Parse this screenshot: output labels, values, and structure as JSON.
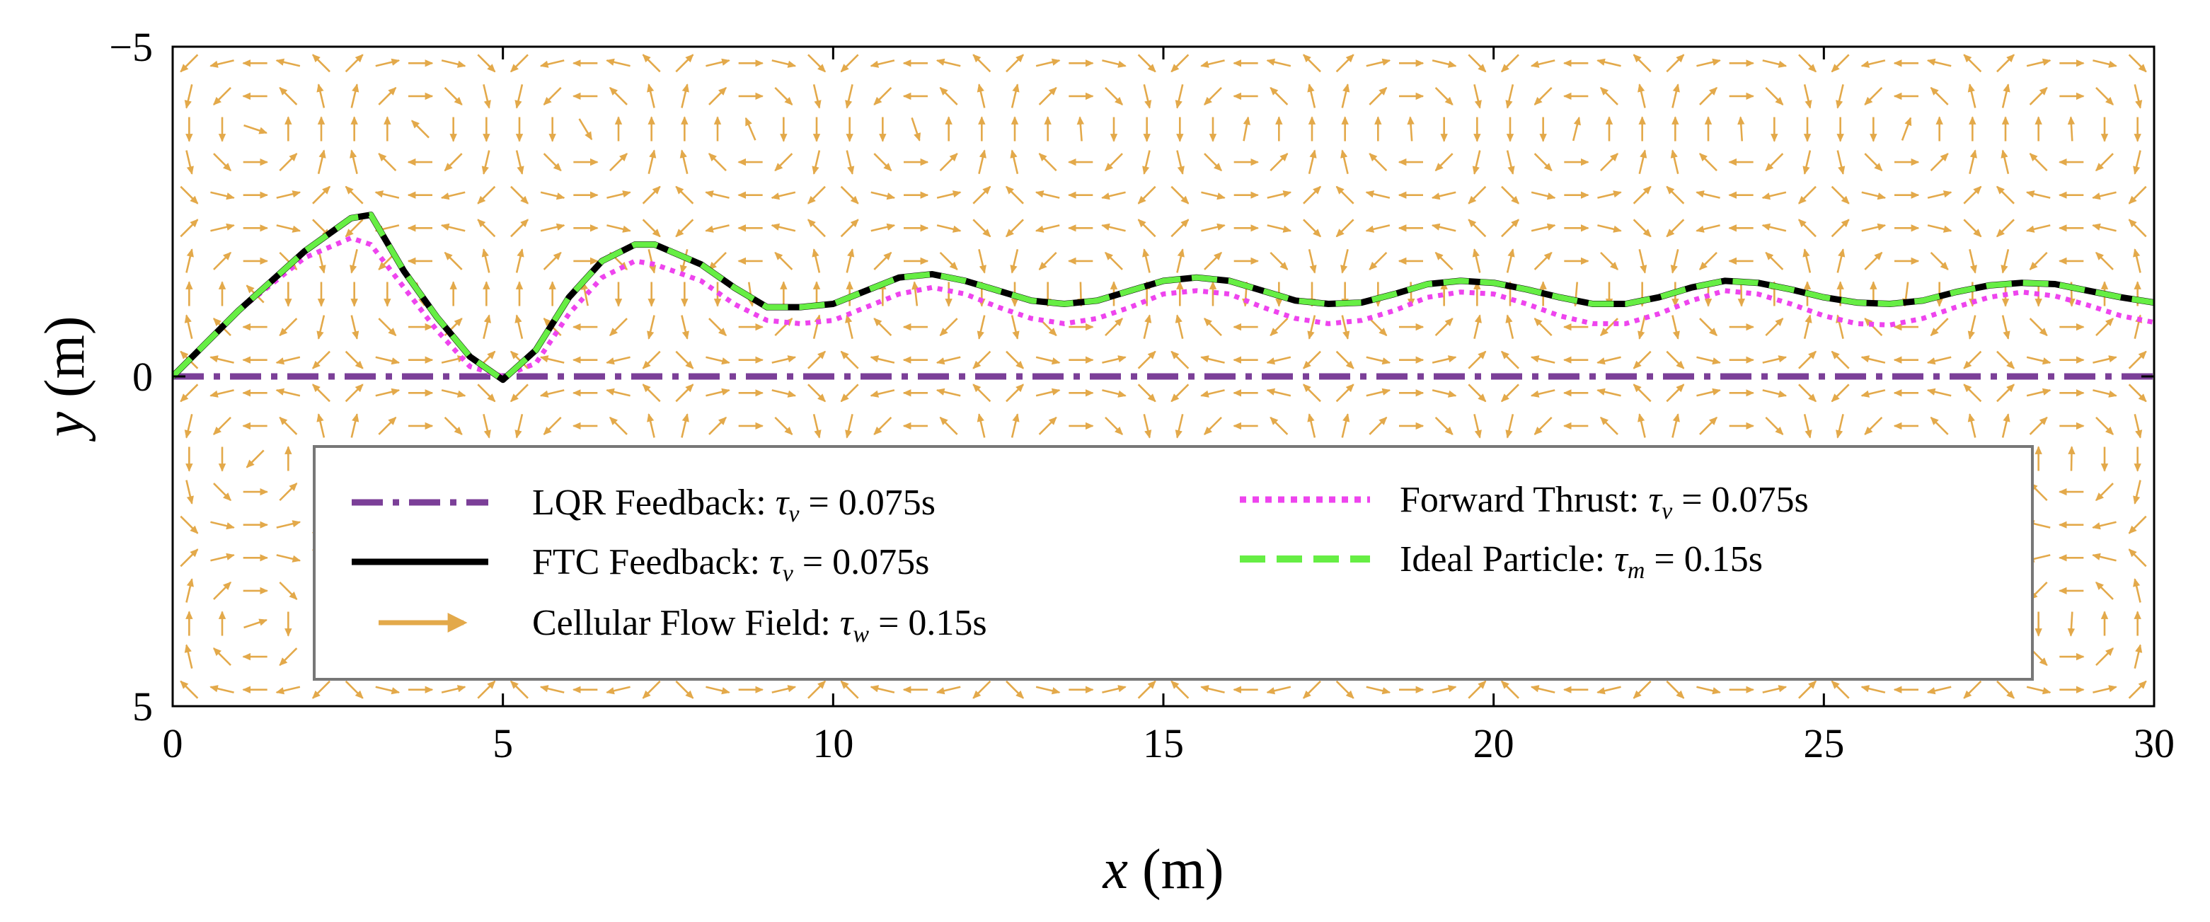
{
  "chart_data": {
    "type": "line",
    "title": "",
    "xlabel_var": "x",
    "xlabel_unit": " (m)",
    "ylabel_var": "y",
    "ylabel_unit": " (m)",
    "xlim": [
      0,
      30
    ],
    "ylim": [
      -5,
      5
    ],
    "y_inverted": true,
    "xticks": [
      0,
      5,
      10,
      15,
      20,
      25,
      30
    ],
    "xtick_labels": [
      "0",
      "5",
      "10",
      "15",
      "20",
      "25",
      "30"
    ],
    "yticks": [
      -5,
      0,
      5
    ],
    "ytick_labels": [
      "−5",
      "0",
      "5"
    ],
    "legend_position": "lower-center",
    "flow_field": {
      "name": "Cellular Flow Field",
      "color": "#e3a94a",
      "grid_nx": 60,
      "grid_ny": 20
    },
    "series": [
      {
        "name": "LQR Feedback",
        "legend": {
          "prefix": "LQR Feedback: ",
          "tau": "τ",
          "sub": "v",
          "suffix": " = 0.075s"
        },
        "color": "#7b3f98",
        "style": "dashdot",
        "x": [
          0,
          30
        ],
        "y": [
          0,
          0
        ]
      },
      {
        "name": "FTC Feedback",
        "legend": {
          "prefix": "FTC Feedback: ",
          "tau": "τ",
          "sub": "v",
          "suffix": " = 0.075s"
        },
        "color": "#000000",
        "style": "solid",
        "x": [
          0,
          1,
          2,
          2.7,
          3,
          3.5,
          4,
          4.5,
          5,
          5.5,
          6,
          6.5,
          7,
          7.3,
          8,
          8.5,
          9,
          9.5,
          10,
          10.5,
          11,
          11.5,
          12,
          12.5,
          13,
          13.5,
          14,
          14.5,
          15,
          15.5,
          16,
          16.5,
          17,
          17.5,
          18,
          18.5,
          19,
          19.5,
          20,
          20.5,
          21,
          21.5,
          22,
          22.5,
          23,
          23.5,
          24,
          24.5,
          25,
          25.5,
          26,
          26.5,
          27,
          27.5,
          28,
          28.5,
          29,
          29.5,
          30
        ],
        "y": [
          0,
          -1.0,
          -1.9,
          -2.4,
          -2.45,
          -1.6,
          -0.9,
          -0.3,
          0.05,
          -0.4,
          -1.2,
          -1.75,
          -2.0,
          -2.0,
          -1.7,
          -1.35,
          -1.05,
          -1.05,
          -1.1,
          -1.3,
          -1.5,
          -1.55,
          -1.45,
          -1.3,
          -1.15,
          -1.1,
          -1.15,
          -1.3,
          -1.45,
          -1.5,
          -1.45,
          -1.3,
          -1.15,
          -1.1,
          -1.12,
          -1.25,
          -1.4,
          -1.45,
          -1.42,
          -1.32,
          -1.2,
          -1.1,
          -1.1,
          -1.2,
          -1.35,
          -1.45,
          -1.42,
          -1.32,
          -1.2,
          -1.12,
          -1.1,
          -1.15,
          -1.28,
          -1.38,
          -1.42,
          -1.4,
          -1.3,
          -1.2,
          -1.12
        ]
      },
      {
        "name": "Cellular Flow Field",
        "legend": {
          "prefix": "Cellular Flow Field: ",
          "tau": "τ",
          "sub": "w",
          "suffix": "  = 0.15s"
        },
        "color": "#e3a94a",
        "style": "arrow",
        "x": [],
        "y": []
      },
      {
        "name": "Forward Thrust",
        "legend": {
          "prefix": "Forward Thrust: ",
          "tau": "τ",
          "sub": "v",
          "suffix": " = 0.075s"
        },
        "color": "#ee44ee",
        "style": "dotted",
        "x": [
          0,
          1,
          2,
          2.7,
          3,
          3.5,
          4,
          4.5,
          5,
          5.5,
          6,
          6.5,
          7,
          7.3,
          8,
          8.5,
          9,
          9.5,
          10,
          10.5,
          11,
          11.5,
          12,
          12.5,
          13,
          13.5,
          14,
          14.5,
          15,
          15.5,
          16,
          16.5,
          17,
          17.5,
          18,
          18.5,
          19,
          19.5,
          20,
          20.5,
          21,
          21.5,
          22,
          22.5,
          23,
          23.5,
          24,
          24.5,
          25,
          25.5,
          26,
          26.5,
          27,
          27.5,
          28,
          28.5,
          29,
          29.5,
          30
        ],
        "y": [
          0,
          -1.0,
          -1.8,
          -2.1,
          -2.0,
          -1.35,
          -0.7,
          -0.15,
          0.0,
          -0.2,
          -0.95,
          -1.5,
          -1.75,
          -1.7,
          -1.45,
          -1.1,
          -0.85,
          -0.8,
          -0.85,
          -1.05,
          -1.25,
          -1.35,
          -1.25,
          -1.05,
          -0.88,
          -0.8,
          -0.88,
          -1.05,
          -1.25,
          -1.3,
          -1.25,
          -1.05,
          -0.88,
          -0.8,
          -0.85,
          -1.0,
          -1.2,
          -1.28,
          -1.25,
          -1.1,
          -0.92,
          -0.8,
          -0.8,
          -0.95,
          -1.15,
          -1.3,
          -1.25,
          -1.1,
          -0.92,
          -0.8,
          -0.78,
          -0.88,
          -1.05,
          -1.2,
          -1.28,
          -1.22,
          -1.08,
          -0.92,
          -0.82
        ]
      },
      {
        "name": "Ideal Particle",
        "legend": {
          "prefix": "Ideal Particle: ",
          "tau": "τ",
          "sub": "m",
          "suffix": "  = 0.15s"
        },
        "color": "#66ee44",
        "style": "dashed",
        "x": [
          0,
          1,
          2,
          2.7,
          3,
          3.5,
          4,
          4.5,
          5,
          5.5,
          6,
          6.5,
          7,
          7.3,
          8,
          8.5,
          9,
          9.5,
          10,
          10.5,
          11,
          11.5,
          12,
          12.5,
          13,
          13.5,
          14,
          14.5,
          15,
          15.5,
          16,
          16.5,
          17,
          17.5,
          18,
          18.5,
          19,
          19.5,
          20,
          20.5,
          21,
          21.5,
          22,
          22.5,
          23,
          23.5,
          24,
          24.5,
          25,
          25.5,
          26,
          26.5,
          27,
          27.5,
          28,
          28.5,
          29,
          29.5,
          30
        ],
        "y": [
          0,
          -1.0,
          -1.9,
          -2.4,
          -2.45,
          -1.6,
          -0.9,
          -0.3,
          0.05,
          -0.4,
          -1.2,
          -1.75,
          -2.0,
          -2.0,
          -1.7,
          -1.35,
          -1.05,
          -1.05,
          -1.1,
          -1.3,
          -1.5,
          -1.55,
          -1.45,
          -1.3,
          -1.15,
          -1.1,
          -1.15,
          -1.3,
          -1.45,
          -1.5,
          -1.45,
          -1.3,
          -1.15,
          -1.1,
          -1.12,
          -1.25,
          -1.4,
          -1.45,
          -1.42,
          -1.32,
          -1.2,
          -1.1,
          -1.1,
          -1.2,
          -1.35,
          -1.45,
          -1.42,
          -1.32,
          -1.2,
          -1.12,
          -1.1,
          -1.15,
          -1.28,
          -1.38,
          -1.42,
          -1.4,
          -1.3,
          -1.2,
          -1.12
        ]
      }
    ]
  }
}
